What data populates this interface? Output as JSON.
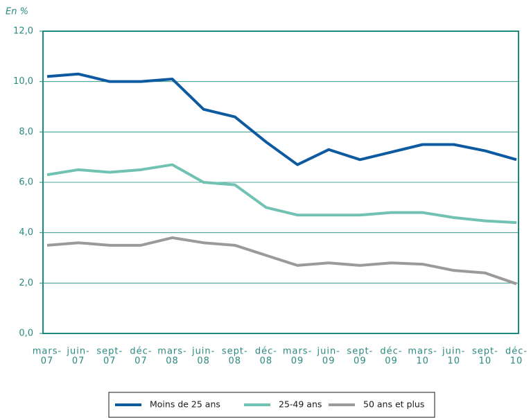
{
  "chart_data": {
    "type": "line",
    "y_unit_label": "En %",
    "categories": [
      [
        "mars-",
        "07"
      ],
      [
        "juin-",
        "07"
      ],
      [
        "sept-",
        "07"
      ],
      [
        "déc-",
        "07"
      ],
      [
        "mars-",
        "08"
      ],
      [
        "juin-",
        "08"
      ],
      [
        "sept-",
        "08"
      ],
      [
        "déc-",
        "08"
      ],
      [
        "mars-",
        "09"
      ],
      [
        "juin-",
        "09"
      ],
      [
        "sept-",
        "09"
      ],
      [
        "déc-",
        "09"
      ],
      [
        "mars-",
        "10"
      ],
      [
        "juin-",
        "10"
      ],
      [
        "sept-",
        "10"
      ],
      [
        "déc-",
        "10"
      ]
    ],
    "series": [
      {
        "name": "Moins de 25 ans",
        "color": "#0d5aa0",
        "values": [
          10.2,
          10.3,
          10.0,
          10.0,
          10.1,
          8.9,
          8.6,
          7.6,
          6.7,
          7.3,
          6.9,
          7.2,
          7.5,
          7.5,
          7.25,
          6.9
        ]
      },
      {
        "name": "25-49 ans",
        "color": "#72c2b4",
        "values": [
          6.3,
          6.5,
          6.4,
          6.5,
          6.7,
          6.0,
          5.9,
          5.0,
          4.7,
          4.7,
          4.7,
          4.8,
          4.8,
          4.6,
          4.47,
          4.4
        ]
      },
      {
        "name": "50 ans et plus",
        "color": "#9a9a9a",
        "values": [
          3.5,
          3.6,
          3.5,
          3.5,
          3.8,
          3.6,
          3.5,
          3.1,
          2.7,
          2.8,
          2.7,
          2.8,
          2.75,
          2.5,
          2.4,
          1.97
        ]
      }
    ],
    "ylim": [
      0,
      12
    ],
    "yticks": [
      {
        "value": 0,
        "label": "0,0"
      },
      {
        "value": 2,
        "label": "2,0"
      },
      {
        "value": 4,
        "label": "4,0"
      },
      {
        "value": 6,
        "label": "6,0"
      },
      {
        "value": 8,
        "label": "8,0"
      },
      {
        "value": 10,
        "label": "10,0"
      },
      {
        "value": 12,
        "label": "12,0"
      }
    ],
    "grid": true
  }
}
